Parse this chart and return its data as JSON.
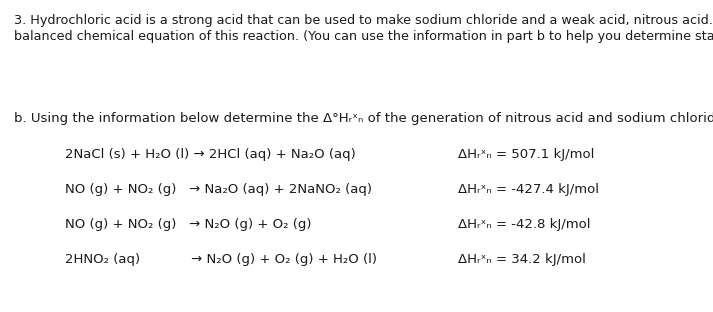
{
  "background_color": "#ffffff",
  "figsize": [
    7.13,
    3.12
  ],
  "dpi": 100,
  "title_line1": "3. Hydrochloric acid is a strong acid that can be used to make sodium chloride and a weak acid, nitrous acid. Write the",
  "title_line2": "balanced chemical equation of this reaction. (You can use the information in part b to help you determine states)",
  "part_b_text": "b. Using the information below determine the Δ°Hᵣˣₙ of the generation of nitrous acid and sodium chloride.",
  "reactions_left": [
    "2NaCl (s) + H₂O (l) → 2HCl (aq) + Na₂O (aq)",
    "NO (g) + NO₂ (g)   → Na₂O (aq) + 2NaNO₂ (aq)",
    "NO (g) + NO₂ (g)   → N₂O (g) + O₂ (g)",
    "2HNO₂ (aq)            → N₂O (g) + O₂ (g) + H₂O (l)"
  ],
  "reactions_right": [
    "ΔHᵣˣₙ = 507.1 kJ/mol",
    "ΔHᵣˣₙ = -427.4 kJ/mol",
    "ΔHᵣˣₙ = -42.8 kJ/mol",
    "ΔHᵣˣₙ = 34.2 kJ/mol"
  ],
  "font_size_top": 9.2,
  "font_size_body": 9.5,
  "font_size_rxn": 9.5,
  "text_color": "#1a1a1a"
}
